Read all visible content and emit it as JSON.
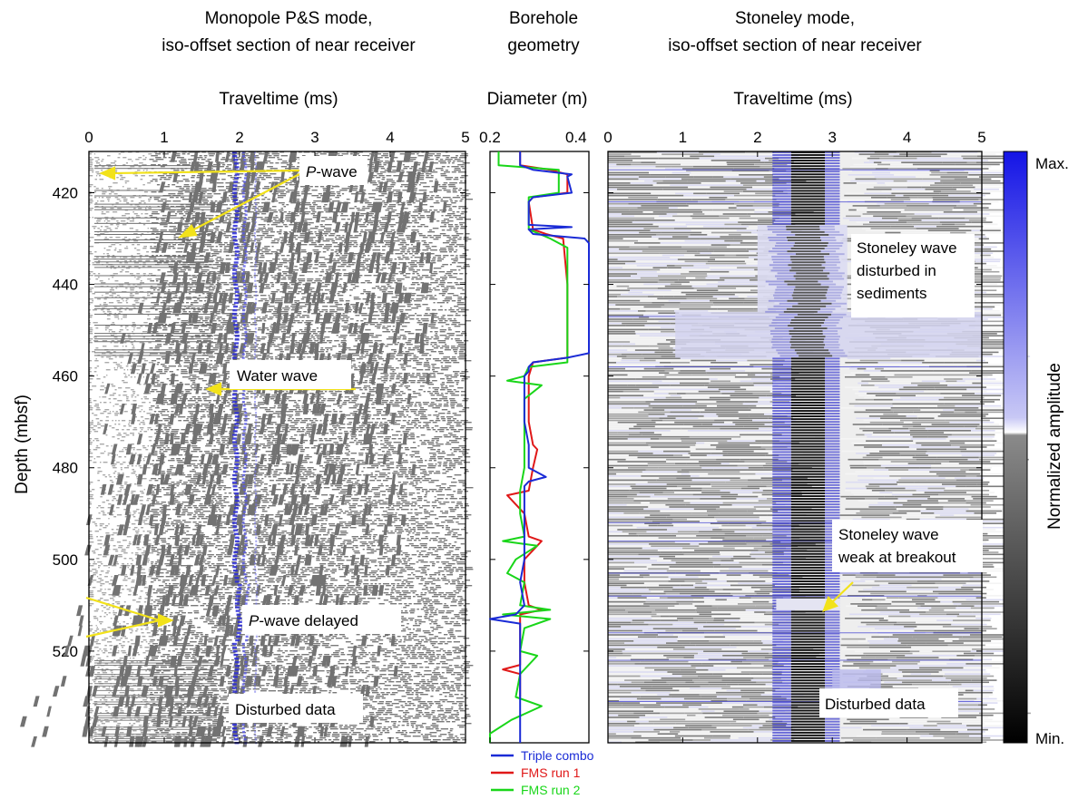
{
  "panels": {
    "monopole": {
      "title_line1": "Monopole P&S mode,",
      "title_line2": "iso-offset section of near receiver",
      "xlabel": "Traveltime (ms)",
      "xticks": [
        "0",
        "1",
        "2",
        "3",
        "4",
        "5"
      ],
      "annotations": {
        "p_wave_italic": "P",
        "p_wave_rest": "-wave",
        "water_wave": "Water wave",
        "p_delayed_italic": "P",
        "p_delayed_rest": "-wave delayed",
        "disturbed": "Disturbed data"
      }
    },
    "borehole": {
      "title_line1": "Borehole",
      "title_line2": "geometry",
      "xlabel": "Diameter (m)",
      "xticks": [
        "0.2",
        "0.4"
      ]
    },
    "stoneley": {
      "title_line1": "Stoneley mode,",
      "title_line2": "iso-offset section of near receiver",
      "xlabel": "Traveltime (ms)",
      "xticks": [
        "0",
        "1",
        "2",
        "3",
        "4",
        "5"
      ],
      "annotations": {
        "disturbed_sed_1": "Stoneley wave",
        "disturbed_sed_2": "disturbed in",
        "disturbed_sed_3": "sediments",
        "weak_1": "Stoneley wave",
        "weak_2": "weak at breakout",
        "disturbed": "Disturbed data"
      }
    }
  },
  "yaxis": {
    "label": "Depth (mbsf)",
    "ticks": [
      "420",
      "440",
      "460",
      "480",
      "500",
      "520"
    ]
  },
  "colorbar": {
    "label": "Normalized amplitude",
    "max": "Max.",
    "min": "Min."
  },
  "legend": [
    {
      "label": "Triple combo",
      "color": "#1a2bd6"
    },
    {
      "label": "FMS run 1",
      "color": "#e01818"
    },
    {
      "label": "FMS run 2",
      "color": "#19d619"
    }
  ],
  "chart_data": [
    {
      "type": "heatmap",
      "title": "Monopole P&S mode, iso-offset section of near receiver",
      "xlabel": "Traveltime (ms)",
      "ylabel": "Depth (mbsf)",
      "xlim": [
        0,
        5
      ],
      "ylim": [
        411,
        540
      ],
      "features": [
        {
          "name": "P-wave",
          "traveltime_ms": [
            0.15,
            1.3
          ],
          "depth_mbsf": [
            411,
            540
          ]
        },
        {
          "name": "Water wave",
          "traveltime_ms": 2.0,
          "depth_mbsf": [
            411,
            540
          ]
        },
        {
          "name": "P-wave delayed",
          "depth_mbsf": [
            508,
            517
          ]
        },
        {
          "name": "Disturbed data",
          "depth_mbsf": [
            522,
            540
          ]
        }
      ]
    },
    {
      "type": "line",
      "title": "Borehole geometry",
      "xlabel": "Diameter (m)",
      "ylabel": "Depth (mbsf)",
      "xlim": [
        0.2,
        0.43
      ],
      "ylim": [
        411,
        540
      ],
      "series": [
        {
          "name": "Triple combo",
          "color": "#1a2bd6",
          "depth": [
            411,
            414,
            415,
            416,
            416.5,
            420,
            421,
            422,
            427,
            427.5,
            428,
            429,
            430,
            431,
            432,
            433,
            455,
            456,
            457,
            458,
            459,
            460,
            461,
            465,
            470,
            475,
            480,
            482,
            483,
            484,
            490,
            495,
            500,
            505,
            510,
            512,
            513,
            514,
            520,
            525,
            530,
            535,
            540
          ],
          "diameter": [
            0.27,
            0.27,
            0.3,
            0.39,
            0.38,
            0.39,
            0.3,
            0.29,
            0.29,
            0.39,
            0.29,
            0.3,
            0.42,
            0.43,
            0.43,
            0.43,
            0.43,
            0.38,
            0.3,
            0.29,
            0.29,
            0.28,
            0.28,
            0.28,
            0.28,
            0.29,
            0.29,
            0.33,
            0.29,
            0.28,
            0.28,
            0.28,
            0.28,
            0.27,
            0.28,
            0.26,
            0.2,
            0.27,
            0.27,
            0.27,
            0.27,
            0.27,
            0.27
          ]
        },
        {
          "name": "FMS run 1",
          "color": "#e01818",
          "depth": [
            411,
            414,
            415,
            416,
            420,
            421,
            422,
            428,
            429,
            430,
            440,
            456,
            457,
            460,
            465,
            470,
            475,
            476,
            480,
            485,
            486,
            490,
            495,
            496,
            500,
            505,
            510,
            511,
            512,
            515,
            520,
            523,
            524,
            525,
            530
          ],
          "diameter": [
            0.27,
            0.27,
            0.34,
            0.38,
            0.38,
            0.3,
            0.29,
            0.3,
            0.33,
            0.37,
            0.38,
            0.38,
            0.3,
            0.29,
            0.29,
            0.29,
            0.3,
            0.31,
            0.3,
            0.29,
            0.24,
            0.28,
            0.29,
            0.32,
            0.28,
            0.28,
            0.29,
            0.32,
            0.27,
            0.27,
            0.27,
            0.27,
            0.23,
            0.27,
            0.27
          ]
        },
        {
          "name": "FMS run 2",
          "color": "#19d619",
          "depth": [
            411,
            414,
            415,
            420,
            421,
            422,
            428,
            430,
            432,
            457,
            458,
            460,
            461,
            462,
            465,
            470,
            475,
            480,
            485,
            490,
            495,
            496,
            497,
            500,
            503,
            505,
            510,
            511,
            512,
            513,
            515,
            520,
            521,
            525,
            530,
            532,
            535,
            538,
            540
          ],
          "diameter": [
            0.22,
            0.22,
            0.36,
            0.36,
            0.29,
            0.29,
            0.29,
            0.34,
            0.38,
            0.38,
            0.29,
            0.28,
            0.24,
            0.32,
            0.28,
            0.28,
            0.28,
            0.28,
            0.27,
            0.27,
            0.28,
            0.23,
            0.31,
            0.26,
            0.24,
            0.28,
            0.27,
            0.34,
            0.23,
            0.34,
            0.28,
            0.27,
            0.31,
            0.27,
            0.26,
            0.32,
            0.25,
            0.2,
            0.2
          ]
        }
      ]
    },
    {
      "type": "heatmap",
      "title": "Stoneley mode, iso-offset section of near receiver",
      "xlabel": "Traveltime (ms)",
      "ylabel": "Depth (mbsf)",
      "xlim": [
        0,
        5
      ],
      "ylim": [
        411,
        540
      ],
      "colorbar": {
        "label": "Normalized amplitude",
        "range": [
          "Min.",
          "Max."
        ]
      },
      "features": [
        {
          "name": "Stoneley wave",
          "traveltime_ms": [
            2.3,
            3.0
          ],
          "depth_mbsf": [
            411,
            540
          ]
        },
        {
          "name": "Stoneley wave disturbed in sediments",
          "depth_mbsf": [
            427,
            455
          ]
        },
        {
          "name": "Stoneley wave weak at breakout",
          "depth_mbsf": [
            508,
            512
          ]
        },
        {
          "name": "Disturbed data",
          "depth_mbsf": [
            522,
            540
          ]
        }
      ]
    }
  ]
}
